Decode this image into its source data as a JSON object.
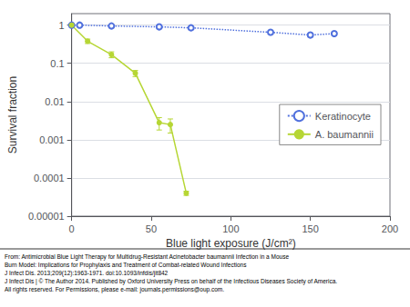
{
  "chart_data": {
    "type": "line",
    "xlabel": "Blue light exposure (J/cm²)",
    "ylabel": "Survival fraction",
    "xlim": [
      0,
      200
    ],
    "xticks": [
      0,
      50,
      100,
      150,
      200
    ],
    "ylim": [
      1e-05,
      2.0
    ],
    "yticks": [
      1e-05,
      0.0001,
      0.001,
      0.01,
      0.1,
      1
    ],
    "log": "y",
    "grid": true,
    "legend": "right",
    "series": [
      {
        "name": "Keratinocyte",
        "marker": "open_circle",
        "line_style": "dotted",
        "x": [
          0,
          5,
          25,
          55,
          75,
          125,
          150,
          165
        ],
        "values": [
          1.0,
          1.0,
          0.95,
          0.9,
          0.85,
          0.65,
          0.55,
          0.6
        ],
        "yerr_lo": [
          0.05,
          0.05,
          0.04,
          0.04,
          0.04,
          0.06,
          0.06,
          0.07
        ],
        "yerr_hi": [
          0.05,
          0.05,
          0.04,
          0.04,
          0.04,
          0.06,
          0.06,
          0.07
        ]
      },
      {
        "name": "A. baumannii",
        "marker": "circle",
        "line_style": "solid",
        "x": [
          0,
          10,
          25,
          40,
          55,
          62,
          72
        ],
        "values": [
          1.0,
          0.38,
          0.17,
          0.055,
          0.0028,
          0.0025,
          4e-05
        ],
        "yerr_lo": [
          0.1,
          0.05,
          0.03,
          0.01,
          0.001,
          0.001,
          5e-06
        ],
        "yerr_hi": [
          0.0,
          0.05,
          0.03,
          0.01,
          0.001,
          0.001,
          5e-06
        ]
      }
    ],
    "annotations": [
      "From: Antimicrobial Blue Light Therapy for Multidrug-Resistant Acinetobacter baumannii Infection in a Mouse",
      "Burn Model: Implications for Prophylaxis and Treatment of Combat-related Wound Infections",
      "J Infect Dis. 2013;209(12):1963-1971. doi:10.1093/infdis/jit842",
      "J Infect Dis | © The Author 2014. Published by Oxford University Press on behalf of the Infectious Diseases Society of America.",
      "All rights reserved. For Permissions, please e-mail: journals.permissions@oup.com."
    ]
  }
}
